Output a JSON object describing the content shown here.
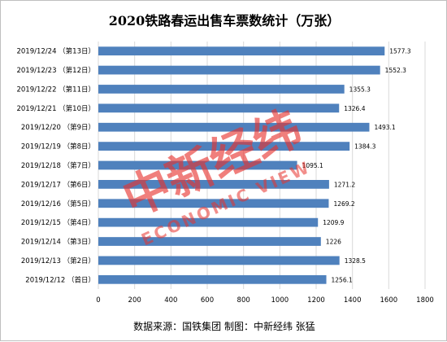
{
  "chart_data": {
    "type": "bar",
    "orientation": "horizontal",
    "title": "2020铁路春运出售车票数统计（万张）",
    "categories": [
      "2019/12/24 （第13日）",
      "2019/12/23 （第12日）",
      "2019/12/22 （第11日）",
      "2019/12/21 （第10日）",
      "2019/12/20 （第9日）",
      "2019/12/19 （第8日）",
      "2019/12/18 （第7日）",
      "2019/12/17 （第6日）",
      "2019/12/16 （第5日）",
      "2019/12/15 （第4日）",
      "2019/12/14 （第3日）",
      "2019/12/13 （第2日）",
      "2019/12/12 （首日）"
    ],
    "values": [
      1577.3,
      1552.3,
      1355.3,
      1326.4,
      1493.1,
      1384.3,
      1095.1,
      1271.2,
      1269.2,
      1209.9,
      1226,
      1328.5,
      1256.1
    ],
    "data_labels": [
      "1577.3",
      "1552.3",
      "1355.3",
      "1326.4",
      "1493.1",
      "1384.3",
      "1095.1",
      "1271.2",
      "1269.2",
      "1209.9",
      "1226",
      "1328.5",
      "1256.1"
    ],
    "xlim": [
      0,
      1800
    ],
    "xticks": [
      "0",
      "200",
      "400",
      "600",
      "800",
      "1000",
      "1200",
      "1400",
      "1600",
      "1800"
    ],
    "xlabel": "",
    "ylabel": "",
    "grid": true,
    "legend": "none",
    "bar_color": "#4f81bd",
    "grid_color": "#d9d9d9"
  },
  "source": "数据来源：国铁集团  制图：中新经纬  张猛",
  "watermark": {
    "main": "中新经纬",
    "sub": "ECONOMIC VIEW",
    "color": "#e8322d"
  }
}
